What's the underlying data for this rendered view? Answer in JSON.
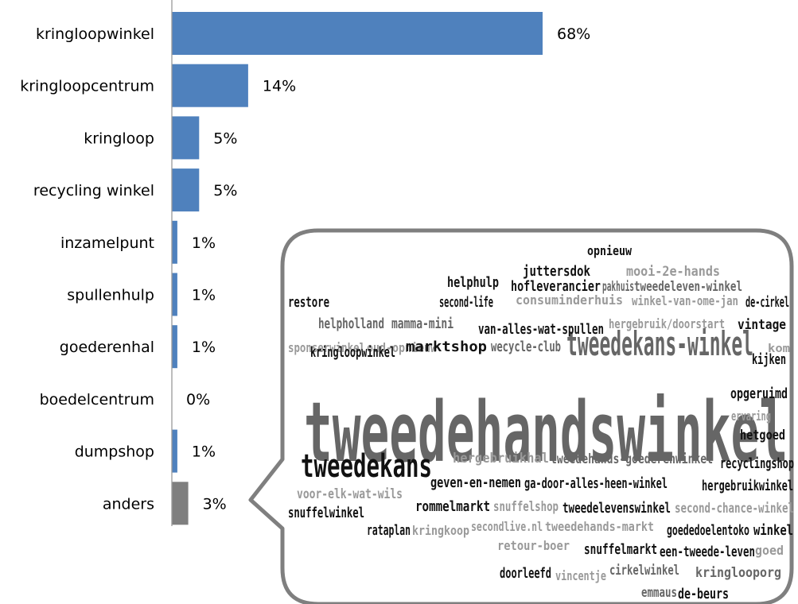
{
  "chart_data": {
    "type": "bar",
    "orientation": "horizontal",
    "categories": [
      "kringloopwinkel",
      "kringloopcentrum",
      "kringloop",
      "recycling winkel",
      "inzamelpunt",
      "spullenhulp",
      "goederenhal",
      "boedelcentrum",
      "dumpshop",
      "anders"
    ],
    "values": [
      68,
      14,
      5,
      5,
      1,
      1,
      1,
      0,
      1,
      3
    ],
    "value_labels": [
      "68%",
      "14%",
      "5%",
      "5%",
      "1%",
      "1%",
      "1%",
      "0%",
      "1%",
      "3%"
    ],
    "bar_colors": [
      "#4f81bd",
      "#4f81bd",
      "#4f81bd",
      "#4f81bd",
      "#4f81bd",
      "#4f81bd",
      "#4f81bd",
      "#4f81bd",
      "#4f81bd",
      "#7f7f7f"
    ],
    "xlim": [
      0,
      100
    ],
    "grid": false,
    "legend": "none",
    "title": "",
    "xlabel": "",
    "ylabel": ""
  },
  "word_cloud": {
    "colors": {
      "dark": "#111111",
      "mid": "#666666",
      "light": "#999999"
    },
    "words": [
      {
        "text": "tweedehandswinkel",
        "tone": "mid"
      },
      {
        "text": "tweedekans-winkel",
        "tone": "mid"
      },
      {
        "text": "tweedekans",
        "tone": "dark"
      },
      {
        "text": "opnieuw",
        "tone": "dark"
      },
      {
        "text": "juttersdok",
        "tone": "dark"
      },
      {
        "text": "mooi-2e-hands",
        "tone": "light"
      },
      {
        "text": "helphulp",
        "tone": "dark"
      },
      {
        "text": "hofleverancier",
        "tone": "dark"
      },
      {
        "text": "pakhuis",
        "tone": "mid"
      },
      {
        "text": "tweedeleven-winkel",
        "tone": "mid"
      },
      {
        "text": "restore",
        "tone": "dark"
      },
      {
        "text": "second-life",
        "tone": "dark"
      },
      {
        "text": "consuminderhuis",
        "tone": "light"
      },
      {
        "text": "winkel-van-ome-jan",
        "tone": "light"
      },
      {
        "text": "de-cirkel",
        "tone": "dark"
      },
      {
        "text": "helpholland",
        "tone": "mid"
      },
      {
        "text": "mamma-mini",
        "tone": "mid"
      },
      {
        "text": "van-alles-wat-spullen",
        "tone": "dark"
      },
      {
        "text": "hergebruik/doorstart",
        "tone": "light"
      },
      {
        "text": "vintage",
        "tone": "dark"
      },
      {
        "text": "sponserwinkel",
        "tone": "light"
      },
      {
        "text": "oud-opnieuw",
        "tone": "light"
      },
      {
        "text": "kom",
        "tone": "light"
      },
      {
        "text": "kringloopwinkel",
        "tone": "dark"
      },
      {
        "text": "marktshop",
        "tone": "dark"
      },
      {
        "text": "wecycle-club",
        "tone": "mid"
      },
      {
        "text": "kijken",
        "tone": "dark"
      },
      {
        "text": "opgeruimd",
        "tone": "dark"
      },
      {
        "text": "ervaring",
        "tone": "light"
      },
      {
        "text": "hetgoed",
        "tone": "dark"
      },
      {
        "text": "hergebruikhal",
        "tone": "light"
      },
      {
        "text": "tweedehands-goederenwinkel",
        "tone": "mid"
      },
      {
        "text": "recyclingshop",
        "tone": "dark"
      },
      {
        "text": "geven-en-nemen",
        "tone": "dark"
      },
      {
        "text": "ga-door-alles-heen-winkel",
        "tone": "dark"
      },
      {
        "text": "hergebruikwinkel",
        "tone": "dark"
      },
      {
        "text": "voor-elk-wat-wils",
        "tone": "light"
      },
      {
        "text": "snuffelwinkel",
        "tone": "dark"
      },
      {
        "text": "rommelmarkt",
        "tone": "dark"
      },
      {
        "text": "snuffelshop",
        "tone": "light"
      },
      {
        "text": "tweedelevenswinkel",
        "tone": "dark"
      },
      {
        "text": "second-chance-winkel",
        "tone": "light"
      },
      {
        "text": "rataplan",
        "tone": "dark"
      },
      {
        "text": "kringkoop",
        "tone": "light"
      },
      {
        "text": "secondlive.nl",
        "tone": "light"
      },
      {
        "text": "tweedehands-markt",
        "tone": "light"
      },
      {
        "text": "goededoelentoko",
        "tone": "dark"
      },
      {
        "text": "winkel",
        "tone": "dark"
      },
      {
        "text": "retour-boer",
        "tone": "light"
      },
      {
        "text": "snuffelmarkt",
        "tone": "dark"
      },
      {
        "text": "een-tweede-leven",
        "tone": "dark"
      },
      {
        "text": "goed",
        "tone": "light"
      },
      {
        "text": "doorleefd",
        "tone": "dark"
      },
      {
        "text": "vincentje",
        "tone": "light"
      },
      {
        "text": "cirkelwinkel",
        "tone": "mid"
      },
      {
        "text": "kringlooporg",
        "tone": "mid"
      },
      {
        "text": "emmaus",
        "tone": "mid"
      },
      {
        "text": "de-beurs",
        "tone": "dark"
      }
    ]
  }
}
